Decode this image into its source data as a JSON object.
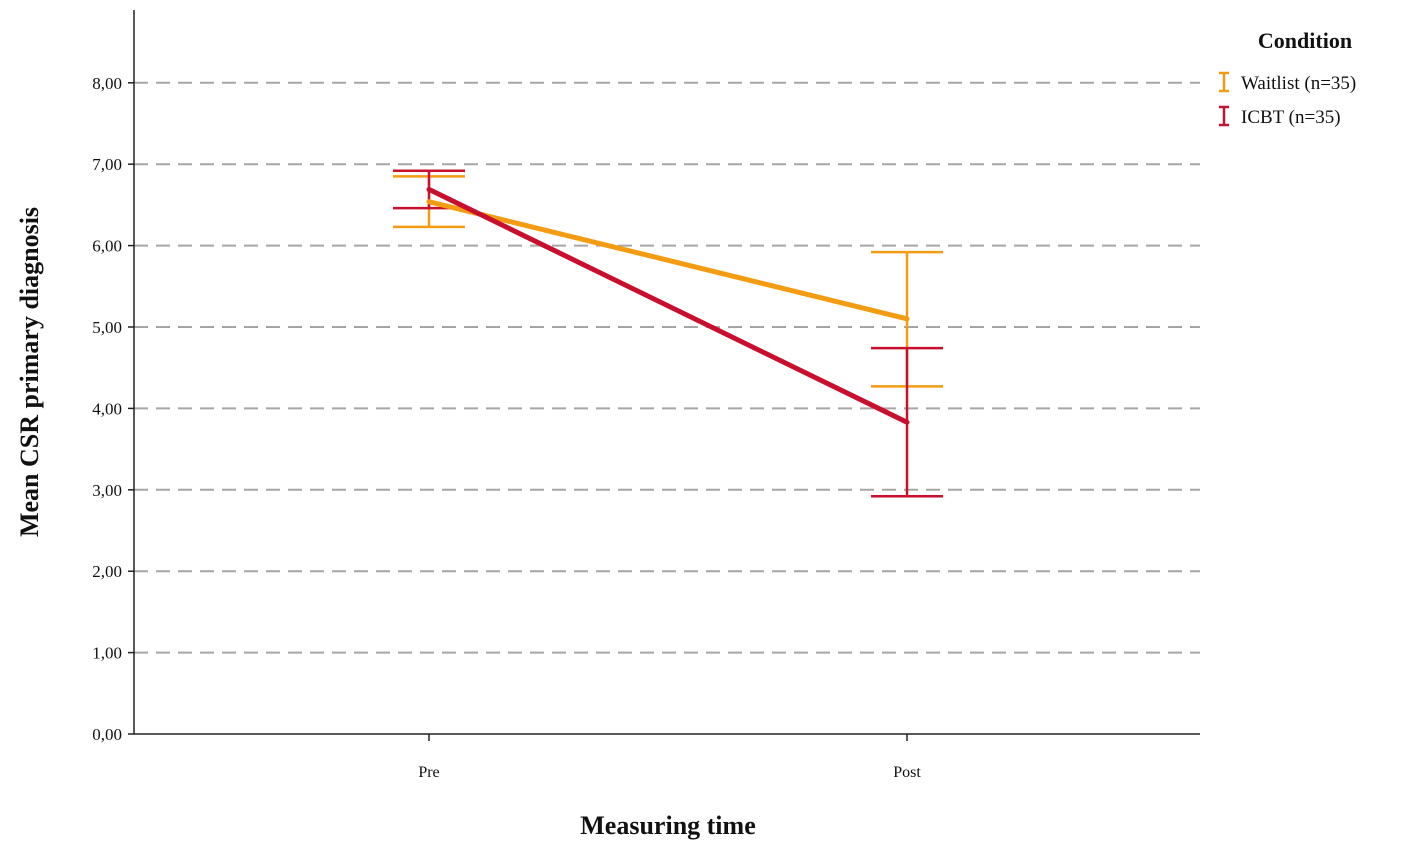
{
  "chart_data": {
    "type": "line",
    "xlabel": "Measuring time",
    "ylabel": "Mean CSR primary diagnosis",
    "categories": [
      "Pre",
      "Post"
    ],
    "ylim": [
      0,
      8
    ],
    "yticks": [
      "0,00",
      "1,00",
      "2,00",
      "3,00",
      "4,00",
      "5,00",
      "6,00",
      "7,00",
      "8,00"
    ],
    "grid": "horizontal dashed",
    "legend": {
      "title": "Condition",
      "placement": "top-right"
    },
    "series": [
      {
        "name": "Waitlist (n=35)",
        "color": "#f39c12",
        "values": [
          6.54,
          5.1
        ],
        "error_low": [
          6.23,
          4.27
        ],
        "error_high": [
          6.85,
          5.92
        ]
      },
      {
        "name": "ICBT (n=35)",
        "color": "#c8102e",
        "values": [
          6.69,
          3.83
        ],
        "error_low": [
          6.46,
          2.92
        ],
        "error_high": [
          6.92,
          4.74
        ]
      }
    ]
  }
}
